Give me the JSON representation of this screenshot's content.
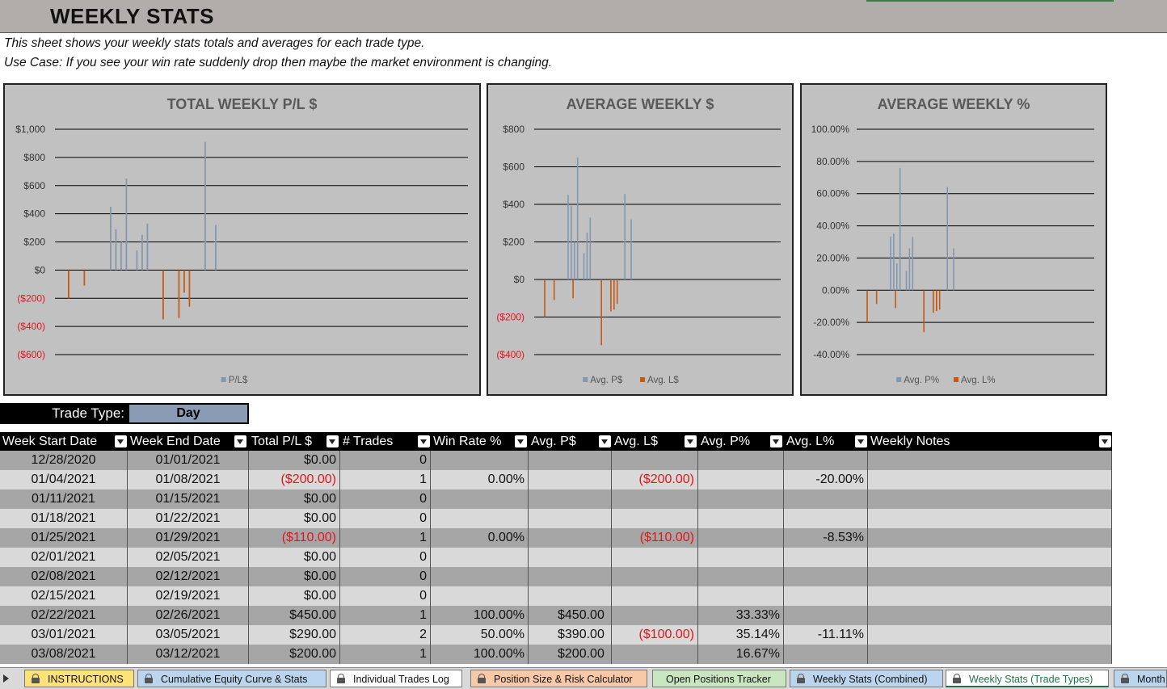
{
  "title": "WEEKLY STATS",
  "description_lines": [
    "This sheet shows your weekly stats totals and averages for each trade type.",
    "Use Case: If you see your win rate suddenly drop then maybe the market environment is changing."
  ],
  "trade_type": {
    "label": "Trade Type:",
    "value": "Day"
  },
  "colors": {
    "positive_series": "#8497b0",
    "negative_series": "#c55a11",
    "negative_text": "#e0161c",
    "chart_bg": "#c1c1c1"
  },
  "chart_data": [
    {
      "type": "bar",
      "title": "TOTAL WEEKLY P/L $",
      "yticks": [
        "$1,000",
        "$800",
        "$600",
        "$400",
        "$200",
        "$0",
        "($200)",
        "($400)",
        "($600)"
      ],
      "ylim": [
        -600,
        1000
      ],
      "legend": [
        "P/L$"
      ],
      "legend_placement": "bottom",
      "grid": true,
      "series": [
        {
          "values": [
            -200,
            0,
            0,
            -110,
            0,
            0,
            0,
            0,
            450,
            290,
            200,
            650,
            0,
            140,
            250,
            330,
            0,
            0,
            -350,
            0,
            0,
            -340,
            -160,
            -260,
            0,
            0,
            910,
            0,
            320
          ]
        }
      ]
    },
    {
      "type": "bar",
      "title": "AVERAGE WEEKLY $",
      "yticks": [
        "$800",
        "$600",
        "$400",
        "$200",
        "$0",
        "($200)",
        "($400)"
      ],
      "ylim": [
        -400,
        800
      ],
      "legend": [
        "Avg. P$",
        "Avg. L$"
      ],
      "legend_placement": "bottom",
      "grid": true,
      "series": [
        {
          "name": "Avg. P$",
          "values": [
            0,
            0,
            0,
            0,
            0,
            0,
            0,
            0,
            450,
            390,
            200,
            650,
            0,
            140,
            250,
            330,
            0,
            0,
            0,
            0,
            0,
            0,
            0,
            0,
            0,
            0,
            455,
            0,
            320
          ]
        },
        {
          "name": "Avg. L$",
          "values": [
            -200,
            0,
            0,
            -110,
            0,
            0,
            0,
            0,
            0,
            -100,
            0,
            0,
            0,
            0,
            0,
            0,
            0,
            0,
            -350,
            0,
            0,
            -170,
            -160,
            -130,
            0,
            0,
            0,
            0,
            0
          ]
        }
      ]
    },
    {
      "type": "bar",
      "title": "AVERAGE WEEKLY %",
      "yticks": [
        "100.00%",
        "80.00%",
        "60.00%",
        "40.00%",
        "20.00%",
        "0.00%",
        "-20.00%",
        "-40.00%"
      ],
      "ylim": [
        -40,
        100
      ],
      "legend": [
        "Avg. P%",
        "Avg. L%"
      ],
      "legend_placement": "bottom",
      "grid": true,
      "series": [
        {
          "name": "Avg. P%",
          "values": [
            0,
            0,
            0,
            0,
            0,
            0,
            0,
            0,
            33.33,
            35.14,
            16.67,
            76,
            0,
            12,
            26,
            33,
            0,
            0,
            0,
            0,
            0,
            0,
            0,
            0,
            0,
            0,
            64,
            0,
            26
          ]
        },
        {
          "name": "Avg. L%",
          "values": [
            -20,
            0,
            0,
            -8.53,
            0,
            0,
            0,
            0,
            0,
            -11.11,
            0,
            0,
            0,
            0,
            0,
            0,
            0,
            0,
            -26,
            0,
            0,
            -14,
            -13,
            -12,
            0,
            0,
            0,
            0,
            0
          ]
        }
      ]
    }
  ],
  "table": {
    "columns": [
      "Week Start Date",
      "Week End Date",
      "Total P/L $",
      "# Trades",
      "Win Rate %",
      "Avg. P$",
      "Avg. L$",
      "Avg. P%",
      "Avg. L%",
      "Weekly Notes"
    ],
    "rows": [
      [
        "12/28/2020",
        "01/01/2021",
        "$0.00",
        "0",
        "",
        "",
        "",
        "",
        "",
        ""
      ],
      [
        "01/04/2021",
        "01/08/2021",
        "($200.00)",
        "1",
        "0.00%",
        "",
        "($200.00)",
        "",
        "-20.00%",
        ""
      ],
      [
        "01/11/2021",
        "01/15/2021",
        "$0.00",
        "0",
        "",
        "",
        "",
        "",
        "",
        ""
      ],
      [
        "01/18/2021",
        "01/22/2021",
        "$0.00",
        "0",
        "",
        "",
        "",
        "",
        "",
        ""
      ],
      [
        "01/25/2021",
        "01/29/2021",
        "($110.00)",
        "1",
        "0.00%",
        "",
        "($110.00)",
        "",
        "-8.53%",
        ""
      ],
      [
        "02/01/2021",
        "02/05/2021",
        "$0.00",
        "0",
        "",
        "",
        "",
        "",
        "",
        ""
      ],
      [
        "02/08/2021",
        "02/12/2021",
        "$0.00",
        "0",
        "",
        "",
        "",
        "",
        "",
        ""
      ],
      [
        "02/15/2021",
        "02/19/2021",
        "$0.00",
        "0",
        "",
        "",
        "",
        "",
        "",
        ""
      ],
      [
        "02/22/2021",
        "02/26/2021",
        "$450.00",
        "1",
        "100.00%",
        "$450.00",
        "",
        "33.33%",
        "",
        ""
      ],
      [
        "03/01/2021",
        "03/05/2021",
        "$290.00",
        "2",
        "50.00%",
        "$390.00",
        "($100.00)",
        "35.14%",
        "-11.11%",
        ""
      ],
      [
        "03/08/2021",
        "03/12/2021",
        "$200.00",
        "1",
        "100.00%",
        "$200.00",
        "",
        "16.67%",
        "",
        ""
      ]
    ]
  },
  "tabs": [
    {
      "label": "INSTRUCTIONS",
      "locked": true,
      "color": "#fde27a",
      "active": false
    },
    {
      "label": "Cumulative Equity Curve & Stats",
      "locked": true,
      "color": "#bcd5ee",
      "active": false
    },
    {
      "label": "Individual Trades Log",
      "locked": true,
      "color": "#ffffff",
      "active": false
    },
    {
      "label": "Position Size & Risk Calculator",
      "locked": true,
      "color": "#f8c9a8",
      "active": false
    },
    {
      "label": "Open Positions Tracker",
      "locked": false,
      "color": "#c8e6c0",
      "active": false
    },
    {
      "label": "Weekly Stats (Combined)",
      "locked": true,
      "color": "#bcd5ee",
      "active": false
    },
    {
      "label": "Weekly Stats (Trade Types)",
      "locked": true,
      "color": "#ffffff",
      "active": true
    },
    {
      "label": "Month",
      "locked": true,
      "color": "#bcd5ee",
      "active": false
    }
  ]
}
